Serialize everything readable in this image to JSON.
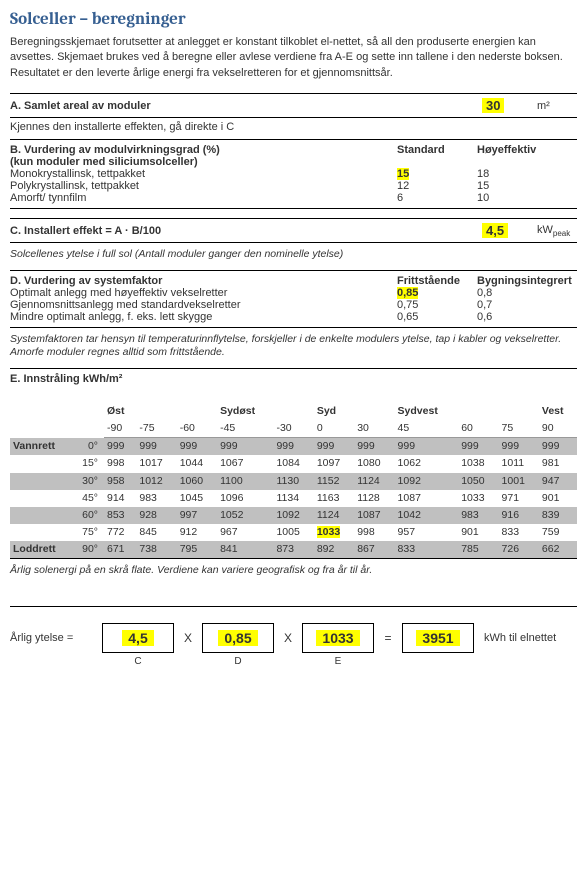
{
  "title": "Solceller – beregninger",
  "intro": "Beregningsskjemaet forutsetter at anlegget er konstant tilkoblet el-nettet, så all den produserte energien kan avsettes. Skjemaet brukes ved å beregne eller avlese verdiene fra A-E og sette inn tallene i den nederste boksen. Resultatet er den leverte årlige energi fra vekselretteren for et gjennomsnittsår.",
  "A": {
    "label": "A. Samlet areal av moduler",
    "value": "30",
    "unit": "m²",
    "note": "Kjennes den installerte effekten, gå direkte i C"
  },
  "B": {
    "label": "B. Vurdering av modulvirkningsgrad (%)",
    "sublabel": "(kun moduler med siliciumsolceller)",
    "col1": "Standard",
    "col2": "Høyeffektiv",
    "rows": [
      {
        "name": "Monokrystallinsk, tettpakket",
        "std": "15",
        "hi": "18",
        "hl": true
      },
      {
        "name": "Polykrystallinsk, tettpakket",
        "std": "12",
        "hi": "15",
        "hl": false
      },
      {
        "name": "Amorft/ tynnfilm",
        "std": "6",
        "hi": "10",
        "hl": false
      }
    ]
  },
  "C": {
    "label": "C. Installert effekt = A · B/100",
    "value": "4,5",
    "unit": "kW",
    "unitsub": "peak",
    "note": "Solcellenes ytelse i full sol (Antall moduler ganger den nominelle ytelse)"
  },
  "D": {
    "label": "D. Vurdering av systemfaktor",
    "col1": "Frittstående",
    "col2": "Bygningsintegrert",
    "rows": [
      {
        "name": "Optimalt anlegg med høyeffektiv vekselretter",
        "a": "0,85",
        "b": "0,8",
        "hl": true
      },
      {
        "name": "Gjennomsnittsanlegg med standardvekselretter",
        "a": "0,75",
        "b": "0,7",
        "hl": false
      },
      {
        "name": "Mindre optimalt anlegg, f. eks. lett skygge",
        "a": "0,65",
        "b": "0,6",
        "hl": false
      }
    ],
    "note": "Systemfaktoren tar hensyn til temperaturinnflytelse, forskjeller i de enkelte modulers ytelse, tap i kabler og vekselretter. Amorfe moduler regnes alltid som frittstående."
  },
  "E": {
    "label": "E. Innstråling kWh/m²",
    "dirs": [
      "Øst",
      "",
      "",
      "Sydøst",
      "",
      "Syd",
      "",
      "Sydvest",
      "",
      "",
      "Vest"
    ],
    "azhdr": [
      "-90",
      "-75",
      "-60",
      "-45",
      "-30",
      "0",
      "30",
      "45",
      "60",
      "75",
      "90"
    ],
    "rowlabels": [
      "Vannrett",
      "",
      "",
      "",
      "",
      "",
      "Loddrett"
    ],
    "degs": [
      "0°",
      "15°",
      "30°",
      "45°",
      "60°",
      "75°",
      "90°"
    ],
    "data": [
      [
        "999",
        "999",
        "999",
        "999",
        "999",
        "999",
        "999",
        "999",
        "999",
        "999",
        "999"
      ],
      [
        "998",
        "1017",
        "1044",
        "1067",
        "1084",
        "1097",
        "1080",
        "1062",
        "1038",
        "1011",
        "981"
      ],
      [
        "958",
        "1012",
        "1060",
        "1100",
        "1130",
        "1152",
        "1124",
        "1092",
        "1050",
        "1001",
        "947"
      ],
      [
        "914",
        "983",
        "1045",
        "1096",
        "1134",
        "1163",
        "1128",
        "1087",
        "1033",
        "971",
        "901"
      ],
      [
        "853",
        "928",
        "997",
        "1052",
        "1092",
        "1124",
        "1087",
        "1042",
        "983",
        "916",
        "839"
      ],
      [
        "772",
        "845",
        "912",
        "967",
        "1005",
        "1033",
        "998",
        "957",
        "901",
        "833",
        "759"
      ],
      [
        "671",
        "738",
        "795",
        "841",
        "873",
        "892",
        "867",
        "833",
        "785",
        "726",
        "662"
      ]
    ],
    "hl_row": 5,
    "hl_col": 5,
    "shaded_rows": [
      0,
      2,
      4,
      6
    ],
    "note": "Årlig solenergi på en skrå flate. Verdiene kan variere geografisk og fra år til år."
  },
  "calc": {
    "label": "Årlig ytelse =",
    "c": "4,5",
    "d": "0,85",
    "e": "1033",
    "res": "3951",
    "unit": "kWh til elnettet",
    "cap_c": "C",
    "cap_d": "D",
    "cap_e": "E"
  }
}
